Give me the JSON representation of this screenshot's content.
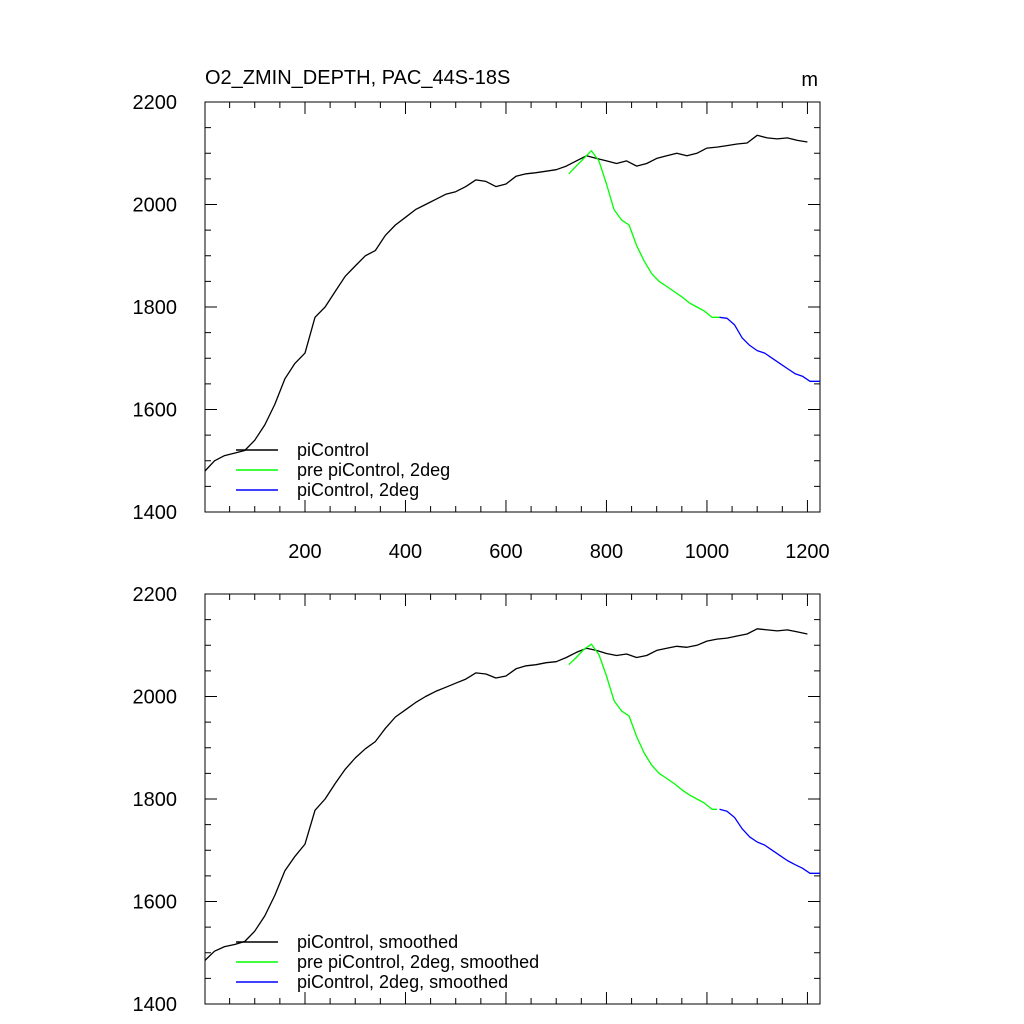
{
  "chart_data": [
    {
      "type": "line",
      "panel": "top",
      "title": "O2_ZMIN_DEPTH, PAC_44S-18S",
      "units": "m",
      "xlim": [
        1,
        1225
      ],
      "ylim": [
        1400,
        2200
      ],
      "x_ticks": [
        200,
        400,
        600,
        800,
        1000,
        1200
      ],
      "x_tick_labels": [
        "200",
        "400",
        "600",
        "800",
        "1000",
        "1200"
      ],
      "y_ticks": [
        1400,
        1600,
        1800,
        2000,
        2200
      ],
      "y_tick_labels": [
        "1400",
        "1600",
        "1800",
        "2000",
        "2200"
      ],
      "grid": false,
      "legend_position": "bottom-left",
      "series": [
        {
          "name": "piControl",
          "color": "#000000",
          "x": [
            1,
            20,
            40,
            60,
            80,
            100,
            120,
            140,
            160,
            180,
            200,
            220,
            240,
            260,
            280,
            300,
            320,
            340,
            360,
            380,
            400,
            420,
            440,
            460,
            480,
            500,
            520,
            540,
            560,
            580,
            600,
            620,
            640,
            660,
            680,
            700,
            720,
            740,
            760,
            780,
            800,
            820,
            840,
            860,
            880,
            900,
            920,
            940,
            960,
            980,
            1000,
            1020,
            1040,
            1060,
            1080,
            1100,
            1120,
            1140,
            1160,
            1180,
            1200
          ],
          "values": [
            1480,
            1500,
            1510,
            1515,
            1520,
            1540,
            1570,
            1610,
            1660,
            1690,
            1710,
            1780,
            1800,
            1830,
            1860,
            1880,
            1900,
            1910,
            1940,
            1960,
            1975,
            1990,
            2000,
            2010,
            2020,
            2025,
            2035,
            2048,
            2045,
            2035,
            2040,
            2055,
            2060,
            2062,
            2065,
            2068,
            2075,
            2085,
            2095,
            2090,
            2085,
            2080,
            2085,
            2075,
            2080,
            2090,
            2095,
            2100,
            2095,
            2100,
            2110,
            2112,
            2115,
            2118,
            2120,
            2135,
            2130,
            2128,
            2130,
            2125,
            2122
          ]
        },
        {
          "name": "pre piControl, 2deg",
          "color": "#00ff00",
          "x": [
            725,
            740,
            755,
            770,
            785,
            800,
            815,
            830,
            845,
            860,
            875,
            890,
            905,
            920,
            935,
            950,
            965,
            980,
            995,
            1010,
            1025
          ],
          "values": [
            2060,
            2075,
            2090,
            2105,
            2085,
            2040,
            1990,
            1970,
            1960,
            1920,
            1890,
            1865,
            1850,
            1840,
            1830,
            1820,
            1808,
            1800,
            1792,
            1780,
            1780
          ]
        },
        {
          "name": "piControl, 2deg",
          "color": "#0000ff",
          "x": [
            1025,
            1040,
            1055,
            1070,
            1085,
            1100,
            1115,
            1130,
            1145,
            1160,
            1175,
            1190,
            1205,
            1225
          ],
          "values": [
            1780,
            1778,
            1765,
            1740,
            1725,
            1715,
            1710,
            1700,
            1690,
            1680,
            1670,
            1665,
            1655,
            1655
          ]
        }
      ]
    },
    {
      "type": "line",
      "panel": "bottom",
      "xlim": [
        1,
        1225
      ],
      "ylim": [
        1400,
        2200
      ],
      "x_ticks": [
        200,
        400,
        600,
        800,
        1000,
        1200
      ],
      "y_ticks": [
        1400,
        1600,
        1800,
        2000,
        2200
      ],
      "y_tick_labels": [
        "1400",
        "1600",
        "1800",
        "2000",
        "2200"
      ],
      "grid": false,
      "legend_position": "bottom-left",
      "series": [
        {
          "name": "piControl, smoothed",
          "color": "#000000",
          "x": [
            1,
            20,
            40,
            60,
            80,
            100,
            120,
            140,
            160,
            180,
            200,
            220,
            240,
            260,
            280,
            300,
            320,
            340,
            360,
            380,
            400,
            420,
            440,
            460,
            480,
            500,
            520,
            540,
            560,
            580,
            600,
            620,
            640,
            660,
            680,
            700,
            720,
            740,
            760,
            780,
            800,
            820,
            840,
            860,
            880,
            900,
            920,
            940,
            960,
            980,
            1000,
            1020,
            1040,
            1060,
            1080,
            1100,
            1120,
            1140,
            1160,
            1180,
            1200
          ],
          "values": [
            1485,
            1503,
            1512,
            1516,
            1522,
            1542,
            1572,
            1612,
            1660,
            1688,
            1712,
            1778,
            1800,
            1830,
            1858,
            1880,
            1898,
            1912,
            1938,
            1960,
            1974,
            1988,
            2000,
            2010,
            2018,
            2026,
            2034,
            2046,
            2044,
            2036,
            2040,
            2054,
            2060,
            2062,
            2066,
            2068,
            2076,
            2086,
            2094,
            2090,
            2084,
            2080,
            2083,
            2076,
            2080,
            2090,
            2094,
            2098,
            2096,
            2100,
            2108,
            2112,
            2114,
            2118,
            2122,
            2132,
            2130,
            2128,
            2130,
            2126,
            2122
          ]
        },
        {
          "name": "pre piControl, 2deg, smoothed",
          "color": "#00ff00",
          "x": [
            725,
            740,
            755,
            770,
            785,
            800,
            815,
            830,
            845,
            860,
            875,
            890,
            905,
            920,
            935,
            950,
            965,
            980,
            995,
            1010,
            1020
          ],
          "values": [
            2062,
            2076,
            2092,
            2102,
            2082,
            2040,
            1992,
            1972,
            1962,
            1922,
            1890,
            1866,
            1850,
            1840,
            1830,
            1818,
            1808,
            1800,
            1792,
            1780,
            1780
          ]
        },
        {
          "name": "piControl, 2deg, smoothed",
          "color": "#0000ff",
          "x": [
            1025,
            1040,
            1055,
            1070,
            1085,
            1100,
            1115,
            1130,
            1145,
            1160,
            1175,
            1190,
            1205,
            1225
          ],
          "values": [
            1780,
            1776,
            1764,
            1742,
            1726,
            1716,
            1710,
            1700,
            1690,
            1680,
            1672,
            1665,
            1655,
            1655
          ]
        }
      ]
    }
  ]
}
